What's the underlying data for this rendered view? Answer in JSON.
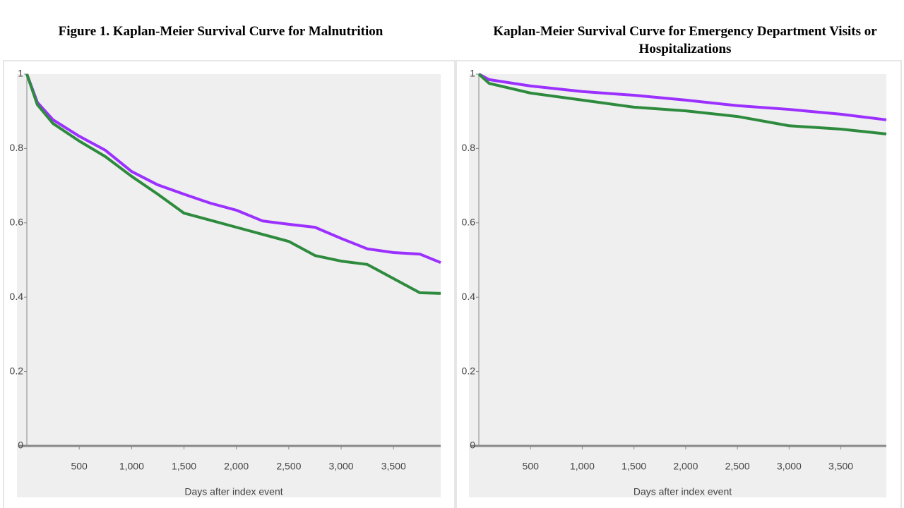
{
  "chart_data": [
    {
      "type": "line",
      "title": "Figure 1. Kaplan-Meier Survival Curve for Malnutrition",
      "x_label": "Days after index event",
      "x": [
        0,
        100,
        250,
        500,
        750,
        1000,
        1250,
        1500,
        1750,
        2000,
        2250,
        2500,
        2750,
        3000,
        3250,
        3500,
        3750,
        3950
      ],
      "series": [
        {
          "color": "#9b30ff",
          "values": [
            1,
            0.924,
            0.877,
            0.833,
            0.795,
            0.738,
            0.702,
            0.677,
            0.653,
            0.634,
            0.605,
            0.596,
            0.588,
            0.558,
            0.53,
            0.52,
            0.516,
            0.493
          ]
        },
        {
          "color": "#2e8b3e",
          "values": [
            1,
            0.918,
            0.867,
            0.82,
            0.778,
            0.725,
            0.677,
            0.626,
            0.607,
            0.588,
            0.569,
            0.55,
            0.512,
            0.497,
            0.488,
            0.45,
            0.412,
            0.41
          ]
        }
      ],
      "xlim": [
        0,
        3950
      ],
      "ylim": [
        0,
        1
      ],
      "xticks": [
        500,
        {
          "value": 1000,
          "label": "1,000"
        },
        {
          "value": 1500,
          "label": "1,500"
        },
        {
          "value": 2000,
          "label": "2,000"
        },
        {
          "value": 2500,
          "label": "2,500"
        },
        {
          "value": 3000,
          "label": "3,000"
        },
        {
          "value": 3500,
          "label": "3,500"
        }
      ],
      "yticks": [
        0,
        0.2,
        0.4,
        0.6,
        0.8,
        1
      ]
    },
    {
      "type": "line",
      "title": "Kaplan-Meier Survival Curve for Emergency Department Visits or Hospitalizations",
      "x_label": "Days after index event",
      "x": [
        0,
        100,
        500,
        1000,
        1500,
        2000,
        2500,
        3000,
        3500,
        3940
      ],
      "series": [
        {
          "color": "#9b30ff",
          "values": [
            1,
            0.985,
            0.968,
            0.953,
            0.943,
            0.93,
            0.915,
            0.905,
            0.892,
            0.877
          ]
        },
        {
          "color": "#2e8b3e",
          "values": [
            1,
            0.975,
            0.949,
            0.93,
            0.911,
            0.901,
            0.886,
            0.861,
            0.852,
            0.839
          ]
        }
      ],
      "xlim": [
        0,
        3940
      ],
      "ylim": [
        0,
        1
      ],
      "xticks": [
        500,
        {
          "value": 1000,
          "label": "1,000"
        },
        {
          "value": 1500,
          "label": "1,500"
        },
        {
          "value": 2000,
          "label": "2,000"
        },
        {
          "value": 2500,
          "label": "2,500"
        },
        {
          "value": 3000,
          "label": "3,000"
        },
        {
          "value": 3500,
          "label": "3,500"
        }
      ],
      "yticks": [
        0,
        0.2,
        0.4,
        0.6,
        0.8,
        1
      ]
    }
  ]
}
